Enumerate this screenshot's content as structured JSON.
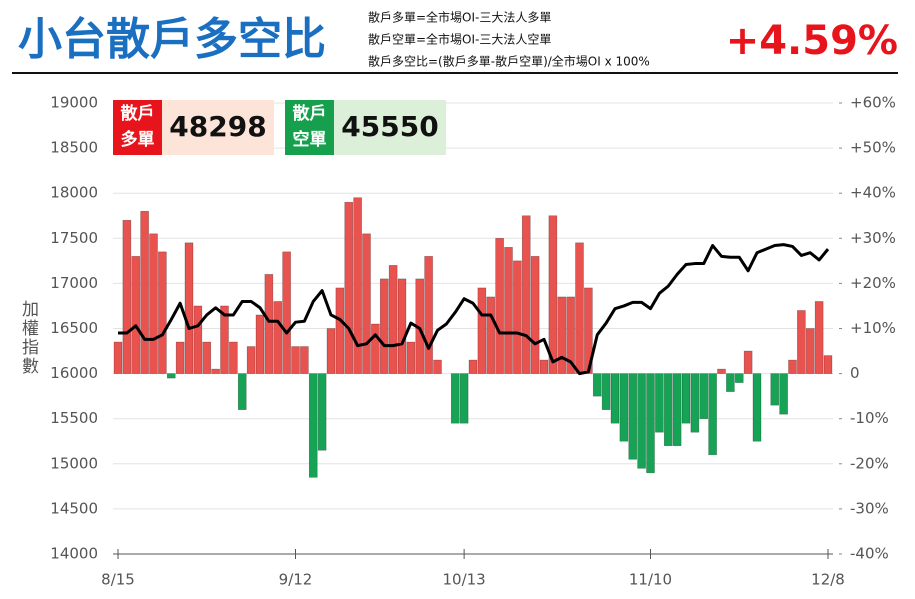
{
  "header": {
    "title": "小台散戶多空比",
    "formulas": [
      "散戶多單=全市場OI-三大法人多單",
      "散戶空單=全市場OI-三大法人空單",
      "散戶多空比=(散戶多單-散戶空單)/全市場OI x 100%"
    ],
    "change": "+4.59%"
  },
  "boxes": [
    {
      "label": [
        "散戶",
        "多單"
      ],
      "value": "48298",
      "color": "#e8141b",
      "bg": "#fde4d8"
    },
    {
      "label": [
        "散戶",
        "空單"
      ],
      "value": "45550",
      "color": "#16a04d",
      "bg": "#dcefd9"
    }
  ],
  "chart_data": {
    "type": "bar",
    "y_label": "加權指數",
    "categories": [
      "8/15",
      null,
      null,
      null,
      null,
      null,
      null,
      null,
      null,
      null,
      null,
      null,
      null,
      null,
      null,
      null,
      null,
      null,
      null,
      null,
      "9/12",
      null,
      null,
      null,
      null,
      null,
      null,
      null,
      null,
      null,
      null,
      null,
      null,
      null,
      null,
      null,
      null,
      null,
      null,
      "10/13",
      null,
      null,
      null,
      null,
      null,
      null,
      null,
      null,
      null,
      null,
      null,
      null,
      null,
      null,
      null,
      null,
      null,
      null,
      null,
      null,
      "11/10",
      null,
      null,
      null,
      null,
      null,
      null,
      null,
      null,
      null,
      null,
      null,
      null,
      null,
      null,
      null,
      null,
      null,
      null,
      null,
      "12/8"
    ],
    "series": [
      {
        "type": "bar",
        "axis": "y2",
        "color": "#e8524f",
        "negative_color": "#17a355",
        "values": [
          7,
          34,
          26,
          36,
          31,
          27,
          -1,
          7,
          29,
          15,
          7,
          1,
          15,
          7,
          -8,
          6,
          13,
          22,
          16,
          27,
          6,
          6,
          -23,
          -17,
          10,
          19,
          38,
          39,
          31,
          11,
          21,
          24,
          21,
          7,
          21,
          26,
          3,
          0,
          -11,
          -11,
          3,
          19,
          17,
          30,
          28,
          25,
          35,
          26,
          3,
          35,
          17,
          17,
          29,
          19,
          -5,
          -8,
          -11,
          -15,
          -19,
          -21,
          -22,
          -13,
          -16,
          -16,
          -11,
          -13,
          -10,
          -18,
          1,
          -4,
          -2,
          5,
          -15,
          0,
          -7,
          -9,
          3,
          14,
          10,
          16,
          4
        ]
      },
      {
        "type": "line",
        "axis": "y",
        "color": "#000000",
        "values": [
          16450,
          16450,
          16530,
          16380,
          16380,
          16430,
          16600,
          16780,
          16500,
          16530,
          16650,
          16730,
          16650,
          16650,
          16800,
          16800,
          16730,
          16580,
          16580,
          16450,
          16570,
          16580,
          16800,
          16920,
          16650,
          16600,
          16500,
          16310,
          16330,
          16430,
          16310,
          16310,
          16330,
          16560,
          16500,
          16280,
          16480,
          16550,
          16680,
          16830,
          16780,
          16650,
          16650,
          16450,
          16450,
          16450,
          16420,
          16330,
          16380,
          16130,
          16180,
          16130,
          16000,
          16020,
          16430,
          16560,
          16720,
          16750,
          16790,
          16790,
          16720,
          16890,
          16970,
          17100,
          17210,
          17220,
          17220,
          17420,
          17300,
          17290,
          17290,
          17140,
          17340,
          17380,
          17420,
          17430,
          17410,
          17310,
          17340,
          17260,
          17380
        ]
      }
    ],
    "ylim": [
      14000,
      19000
    ],
    "yticks": [
      14000,
      14500,
      15000,
      15500,
      16000,
      16500,
      17000,
      17500,
      18000,
      18500,
      19000
    ],
    "y2lim": [
      -40,
      60
    ],
    "y2ticks": [
      {
        "value": -40,
        "label": "-40%"
      },
      {
        "value": -30,
        "label": "-30%"
      },
      {
        "value": -20,
        "label": "-20%"
      },
      {
        "value": -10,
        "label": "-10%"
      },
      0,
      {
        "value": 10,
        "label": "+10%"
      },
      {
        "value": 20,
        "label": "+20%"
      },
      {
        "value": 30,
        "label": "+30%"
      },
      {
        "value": 40,
        "label": "+40%"
      },
      {
        "value": 50,
        "label": "+50%"
      },
      {
        "value": 60,
        "label": "+60%"
      }
    ],
    "grid": true
  }
}
